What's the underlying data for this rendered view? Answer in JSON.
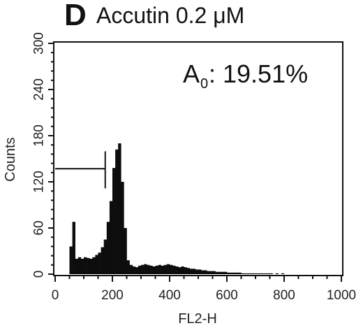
{
  "chart_data": {
    "type": "bar",
    "panel_letter": "D",
    "title": "Accutin 0.2 μM",
    "annotation": {
      "label": "A",
      "subscript": "0",
      "value": ": 19.51%"
    },
    "xlabel": "FL2-H",
    "ylabel": "Counts",
    "xlim": [
      0,
      1000
    ],
    "ylim": [
      0,
      300
    ],
    "xticks": [
      "0",
      "200",
      "400",
      "600",
      "800",
      "1000"
    ],
    "yticks": [
      "0",
      "60",
      "120",
      "180",
      "240",
      "300"
    ],
    "gate": {
      "x_start": 0,
      "x_end": 175,
      "y": 137
    },
    "series": [
      {
        "bin_width": 10,
        "x": [
          50,
          60,
          70,
          80,
          90,
          100,
          110,
          120,
          130,
          140,
          150,
          160,
          170,
          180,
          190,
          200,
          210,
          220,
          230,
          240,
          250,
          260,
          270,
          280,
          290,
          300,
          310,
          320,
          330,
          340,
          350,
          360,
          370,
          380,
          390,
          400,
          410,
          420,
          430,
          440,
          450,
          460,
          470,
          480,
          490,
          500,
          510,
          520,
          530,
          540,
          550,
          560,
          570,
          580,
          590,
          600,
          610,
          620,
          630,
          640,
          650,
          660,
          670,
          680,
          690,
          700,
          710,
          720,
          730,
          740,
          750,
          760,
          770,
          780,
          790,
          800
        ],
        "values": [
          36,
          68,
          20,
          22,
          20,
          22,
          21,
          20,
          22,
          25,
          28,
          35,
          45,
          68,
          95,
          138,
          162,
          170,
          120,
          60,
          18,
          12,
          10,
          9,
          11,
          12,
          13,
          12,
          11,
          10,
          11,
          12,
          11,
          12,
          13,
          12,
          11,
          10,
          9,
          10,
          9,
          8,
          7,
          7,
          6,
          6,
          5,
          5,
          4,
          4,
          4,
          3,
          3,
          3,
          3,
          2,
          2,
          2,
          2,
          2,
          1,
          1,
          1,
          1,
          1,
          1,
          1,
          1,
          1,
          1,
          1,
          0,
          1,
          0,
          1,
          0
        ]
      }
    ]
  }
}
